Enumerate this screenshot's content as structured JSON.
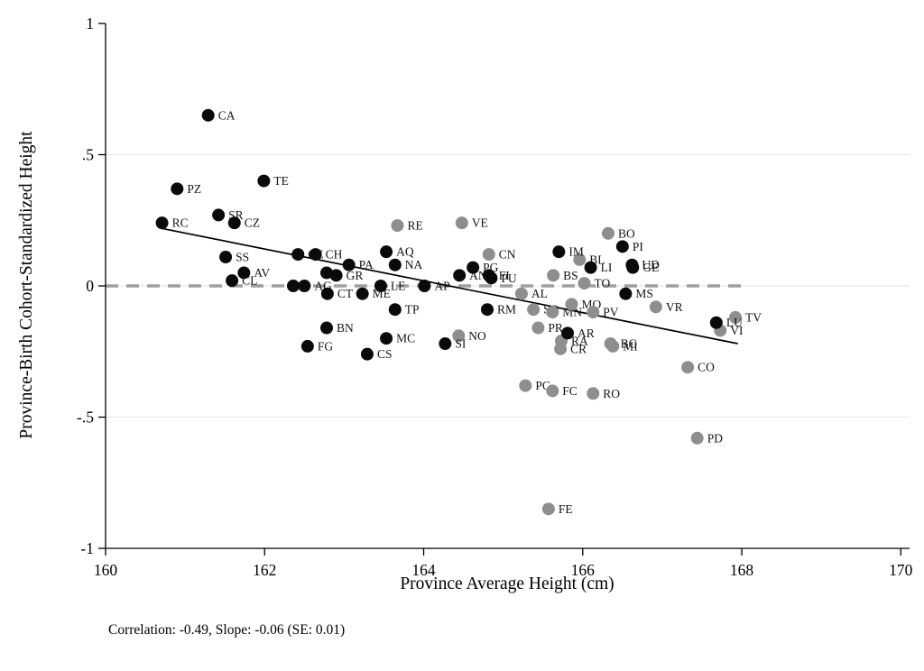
{
  "chart_data": {
    "type": "scatter",
    "title": "",
    "xlabel": "Province Average Height (cm)",
    "ylabel": "Province-Birth Cohort-Standardized Height",
    "note": "Correlation: -0.49, Slope: -0.06 (SE: 0.01)",
    "xlim": [
      160,
      170.11
    ],
    "ylim": [
      -1,
      1
    ],
    "x_ticks": [
      160,
      162,
      164,
      166,
      168,
      170
    ],
    "x_tick_labels": [
      "160",
      "162",
      "164",
      "166",
      "168",
      "170"
    ],
    "y_ticks": [
      1,
      0.5,
      0,
      -0.5,
      -1
    ],
    "y_tick_labels": [
      "1",
      ".5",
      "0",
      "-.5",
      "-1"
    ],
    "gridlines_y": [
      0.5,
      0,
      -0.5
    ],
    "legend": "none",
    "grid": "horizontal-light",
    "palette": {
      "black": "#0a0a0a",
      "gray": "#8e8e8e"
    },
    "zero_line": {
      "y": 0,
      "x_start": 160,
      "x_end": 168.05,
      "style": "dashed",
      "color": "#9f9f9f"
    },
    "fit_line": {
      "x1": 160.69,
      "y1": 0.22,
      "x2": 167.95,
      "y2": -0.22,
      "color": "#000000"
    },
    "series": [
      {
        "name": "gray-provinces",
        "group": "gray",
        "points": [
          {
            "label": "RE",
            "x": 163.67,
            "y": 0.23
          },
          {
            "label": "VE",
            "x": 164.48,
            "y": 0.24
          },
          {
            "label": "CN",
            "x": 164.82,
            "y": 0.12
          },
          {
            "label": "NO",
            "x": 164.44,
            "y": -0.19
          },
          {
            "label": "BS",
            "x": 165.63,
            "y": 0.04
          },
          {
            "label": "AL",
            "x": 165.23,
            "y": -0.03
          },
          {
            "label": "SO",
            "x": 165.38,
            "y": -0.09
          },
          {
            "label": "MN",
            "x": 165.62,
            "y": -0.1
          },
          {
            "label": "MO",
            "x": 165.86,
            "y": -0.07
          },
          {
            "label": "TO",
            "x": 166.02,
            "y": 0.01
          },
          {
            "label": "PV",
            "x": 166.13,
            "y": -0.1
          },
          {
            "label": "PR",
            "x": 165.44,
            "y": -0.16
          },
          {
            "label": "RA",
            "x": 165.73,
            "y": -0.21
          },
          {
            "label": "CR",
            "x": 165.72,
            "y": -0.24
          },
          {
            "label": "BG",
            "x": 166.35,
            "y": -0.22
          },
          {
            "label": "MI",
            "x": 166.38,
            "y": -0.23
          },
          {
            "label": "BL",
            "x": 165.96,
            "y": 0.1
          },
          {
            "label": "BO",
            "x": 166.32,
            "y": 0.2
          },
          {
            "label": "VR",
            "x": 166.92,
            "y": -0.08
          },
          {
            "label": "TV",
            "x": 167.92,
            "y": -0.12
          },
          {
            "label": "VI",
            "x": 167.73,
            "y": -0.17
          },
          {
            "label": "PC",
            "x": 165.28,
            "y": -0.38
          },
          {
            "label": "FC",
            "x": 165.62,
            "y": -0.4
          },
          {
            "label": "RO",
            "x": 166.13,
            "y": -0.41
          },
          {
            "label": "CO",
            "x": 167.32,
            "y": -0.31
          },
          {
            "label": "PD",
            "x": 167.44,
            "y": -0.58
          },
          {
            "label": "FE",
            "x": 165.57,
            "y": -0.85
          }
        ]
      },
      {
        "name": "black-provinces",
        "group": "black",
        "points": [
          {
            "label": "CA",
            "x": 161.29,
            "y": 0.65
          },
          {
            "label": "PZ",
            "x": 160.9,
            "y": 0.37
          },
          {
            "label": "TE",
            "x": 161.99,
            "y": 0.4
          },
          {
            "label": "RC",
            "x": 160.71,
            "y": 0.24
          },
          {
            "label": "SR",
            "x": 161.42,
            "y": 0.27
          },
          {
            "label": "CZ",
            "x": 161.62,
            "y": 0.24
          },
          {
            "label": "SS",
            "x": 161.51,
            "y": 0.11
          },
          {
            "label": "AV",
            "x": 161.74,
            "y": 0.05
          },
          {
            "label": "CL",
            "x": 161.59,
            "y": 0.02
          },
          {
            "label": "CE",
            "x": 162.42,
            "y": 0.12
          },
          {
            "label": "CH",
            "x": 162.64,
            "y": 0.12
          },
          {
            "label": "",
            "x": 162.78,
            "y": 0.05
          },
          {
            "label": "GR",
            "x": 162.9,
            "y": 0.04
          },
          {
            "label": "PA",
            "x": 163.06,
            "y": 0.08
          },
          {
            "label": "",
            "x": 162.36,
            "y": 0.0
          },
          {
            "label": "AG",
            "x": 162.5,
            "y": 0.0
          },
          {
            "label": "CT",
            "x": 162.79,
            "y": -0.03
          },
          {
            "label": "ME",
            "x": 163.23,
            "y": -0.03
          },
          {
            "label": "LE",
            "x": 163.46,
            "y": 0.0
          },
          {
            "label": "AQ",
            "x": 163.53,
            "y": 0.13
          },
          {
            "label": "NA",
            "x": 163.64,
            "y": 0.08
          },
          {
            "label": "TP",
            "x": 163.64,
            "y": -0.09
          },
          {
            "label": "BN",
            "x": 162.78,
            "y": -0.16
          },
          {
            "label": "FG",
            "x": 162.54,
            "y": -0.23
          },
          {
            "label": "MC",
            "x": 163.53,
            "y": -0.2
          },
          {
            "label": "CS",
            "x": 163.29,
            "y": -0.26
          },
          {
            "label": "AP",
            "x": 164.01,
            "y": 0.0
          },
          {
            "label": "AN",
            "x": 164.45,
            "y": 0.04
          },
          {
            "label": "PG",
            "x": 164.62,
            "y": 0.07
          },
          {
            "label": "FI",
            "x": 164.82,
            "y": 0.04
          },
          {
            "label": "PU",
            "x": 164.85,
            "y": 0.03
          },
          {
            "label": "SI",
            "x": 164.27,
            "y": -0.22
          },
          {
            "label": "RM",
            "x": 164.8,
            "y": -0.09
          },
          {
            "label": "IM",
            "x": 165.7,
            "y": 0.13
          },
          {
            "label": "LI",
            "x": 166.1,
            "y": 0.07
          },
          {
            "label": "PI",
            "x": 166.5,
            "y": 0.15
          },
          {
            "label": "UD",
            "x": 166.62,
            "y": 0.08
          },
          {
            "label": "GE",
            "x": 166.63,
            "y": 0.07
          },
          {
            "label": "MS",
            "x": 166.54,
            "y": -0.03
          },
          {
            "label": "AR",
            "x": 165.81,
            "y": -0.18
          },
          {
            "label": "LU",
            "x": 167.68,
            "y": -0.14
          }
        ]
      }
    ]
  }
}
